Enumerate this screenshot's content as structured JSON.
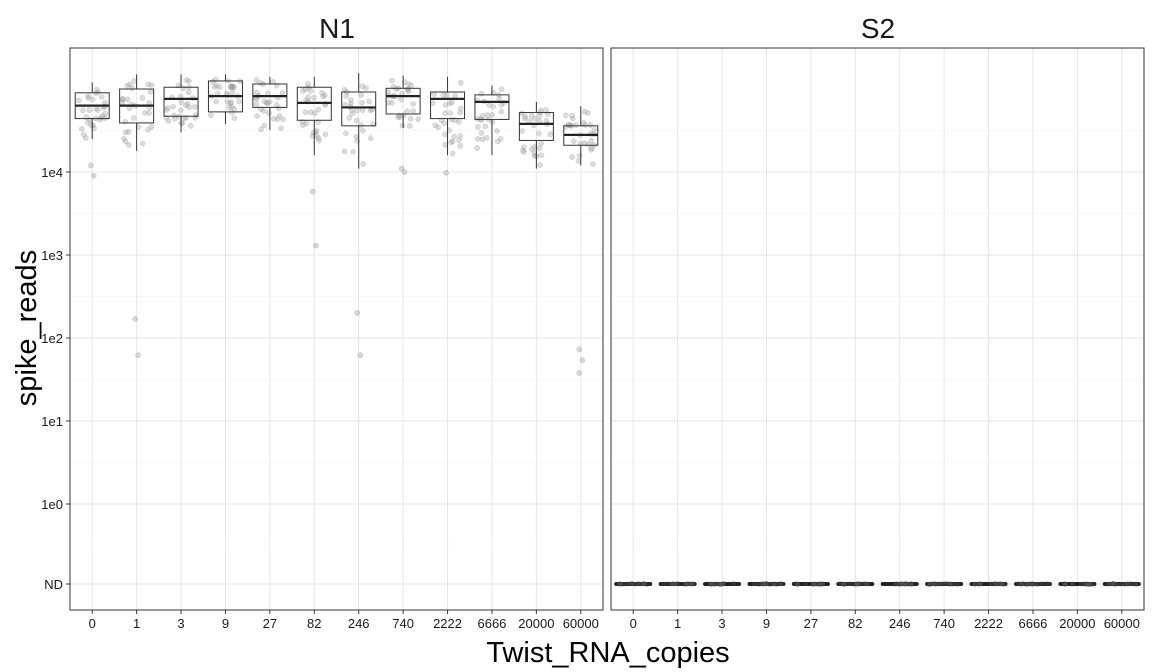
{
  "chart_data": {
    "type": "boxplot",
    "xlabel": "Twist_RNA_copies",
    "ylabel": "spike_reads",
    "y_scale": "log10",
    "y_ticks": [
      "ND",
      "1e0",
      "1e1",
      "1e2",
      "1e3",
      "1e4"
    ],
    "nd_label": "ND",
    "grid": true,
    "legend": "none",
    "categories": [
      "0",
      "1",
      "3",
      "9",
      "27",
      "82",
      "246",
      "740",
      "2222",
      "6666",
      "20000",
      "60000"
    ],
    "panels": [
      {
        "name": "N1",
        "boxes": [
          {
            "x": "0",
            "min": 25000,
            "q1": 44000,
            "median": 63000,
            "q3": 90000,
            "max": 120000
          },
          {
            "x": "1",
            "min": 18000,
            "q1": 39000,
            "median": 63000,
            "q3": 100000,
            "max": 150000
          },
          {
            "x": "3",
            "min": 30000,
            "q1": 47000,
            "median": 76000,
            "q3": 105000,
            "max": 150000
          },
          {
            "x": "9",
            "min": 38000,
            "q1": 53000,
            "median": 82000,
            "q3": 125000,
            "max": 150000
          },
          {
            "x": "27",
            "min": 32000,
            "q1": 60000,
            "median": 82000,
            "q3": 115000,
            "max": 140000
          },
          {
            "x": "82",
            "min": 16000,
            "q1": 42000,
            "median": 68000,
            "q3": 105000,
            "max": 140000
          },
          {
            "x": "246",
            "min": 11000,
            "q1": 36000,
            "median": 60000,
            "q3": 92000,
            "max": 155000
          },
          {
            "x": "740",
            "min": 34000,
            "q1": 50000,
            "median": 82000,
            "q3": 102000,
            "max": 145000
          },
          {
            "x": "2222",
            "min": 16000,
            "q1": 44000,
            "median": 76000,
            "q3": 92000,
            "max": 140000
          },
          {
            "x": "6666",
            "min": 16000,
            "q1": 43000,
            "median": 70000,
            "q3": 85000,
            "max": 110000
          },
          {
            "x": "20000",
            "min": 11000,
            "q1": 24000,
            "median": 38000,
            "q3": 52000,
            "max": 70000
          },
          {
            "x": "60000",
            "min": 12000,
            "q1": 21000,
            "median": 28000,
            "q3": 36000,
            "max": 62000
          }
        ],
        "outliers": [
          {
            "x": "0",
            "values": [
              12000,
              9000
            ]
          },
          {
            "x": "1",
            "values": [
              170,
              62
            ]
          },
          {
            "x": "82",
            "values": [
              5800,
              1300
            ]
          },
          {
            "x": "246",
            "values": [
              200,
              62
            ]
          },
          {
            "x": "740",
            "values": [
              11000,
              10000
            ]
          },
          {
            "x": "2222",
            "values": [
              9800
            ]
          },
          {
            "x": "60000",
            "values": [
              73,
              54,
              38
            ]
          }
        ]
      },
      {
        "name": "S2",
        "boxes": [
          {
            "x": "0",
            "value": "ND"
          },
          {
            "x": "1",
            "value": "ND"
          },
          {
            "x": "3",
            "value": "ND"
          },
          {
            "x": "9",
            "value": "ND"
          },
          {
            "x": "27",
            "value": "ND"
          },
          {
            "x": "82",
            "value": "ND"
          },
          {
            "x": "246",
            "value": "ND"
          },
          {
            "x": "740",
            "value": "ND"
          },
          {
            "x": "2222",
            "value": "ND"
          },
          {
            "x": "6666",
            "value": "ND"
          },
          {
            "x": "20000",
            "value": "ND"
          },
          {
            "x": "60000",
            "value": "ND"
          }
        ],
        "outliers": []
      }
    ]
  }
}
